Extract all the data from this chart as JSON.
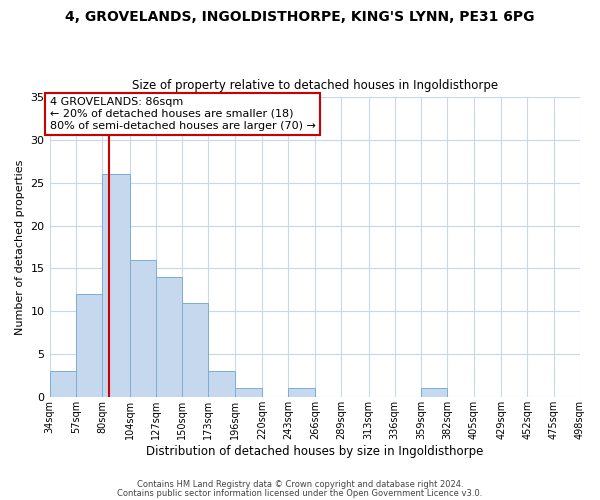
{
  "title": "4, GROVELANDS, INGOLDISTHORPE, KING'S LYNN, PE31 6PG",
  "subtitle": "Size of property relative to detached houses in Ingoldisthorpe",
  "xlabel": "Distribution of detached houses by size in Ingoldisthorpe",
  "ylabel": "Number of detached properties",
  "bin_edges": [
    34,
    57,
    80,
    104,
    127,
    150,
    173,
    196,
    220,
    243,
    266,
    289,
    313,
    336,
    359,
    382,
    405,
    429,
    452,
    475,
    498
  ],
  "bar_heights": [
    3,
    12,
    26,
    16,
    14,
    11,
    3,
    1,
    0,
    1,
    0,
    0,
    0,
    0,
    1,
    0,
    0,
    0,
    0,
    0
  ],
  "bar_color": "#c5d8ed",
  "bar_edge_color": "#7aaed4",
  "property_size": 86,
  "vline_color": "#cc0000",
  "annotation_text": "4 GROVELANDS: 86sqm\n← 20% of detached houses are smaller (18)\n80% of semi-detached houses are larger (70) →",
  "annotation_box_edgecolor": "#cc0000",
  "ylim": [
    0,
    35
  ],
  "yticks": [
    0,
    5,
    10,
    15,
    20,
    25,
    30,
    35
  ],
  "footer_line1": "Contains HM Land Registry data © Crown copyright and database right 2024.",
  "footer_line2": "Contains public sector information licensed under the Open Government Licence v3.0.",
  "tick_labels": [
    "34sqm",
    "57sqm",
    "80sqm",
    "104sqm",
    "127sqm",
    "150sqm",
    "173sqm",
    "196sqm",
    "220sqm",
    "243sqm",
    "266sqm",
    "289sqm",
    "313sqm",
    "336sqm",
    "359sqm",
    "382sqm",
    "405sqm",
    "429sqm",
    "452sqm",
    "475sqm",
    "498sqm"
  ],
  "background_color": "#ffffff",
  "grid_color": "#c8d8e8"
}
